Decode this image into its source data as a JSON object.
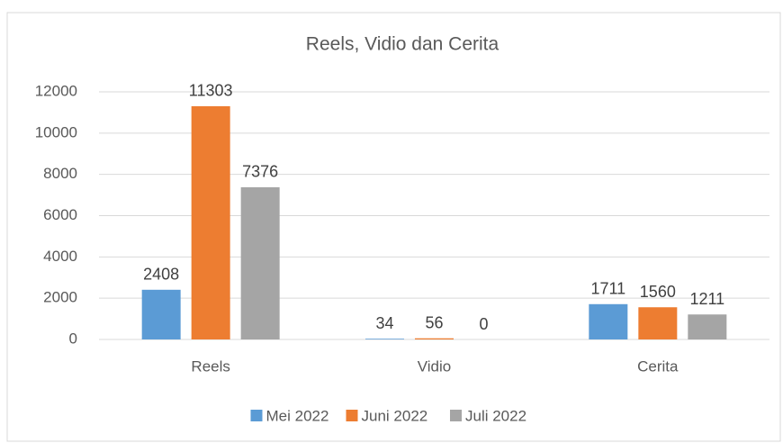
{
  "chart_data": {
    "type": "bar",
    "title": "Reels, Vidio dan Cerita",
    "categories": [
      "Reels",
      "Vidio",
      "Cerita"
    ],
    "series": [
      {
        "name": "Mei 2022",
        "color": "#5b9bd5",
        "values": [
          2408,
          34,
          1711
        ]
      },
      {
        "name": "Juni 2022",
        "color": "#ed7d31",
        "values": [
          11303,
          56,
          1560
        ]
      },
      {
        "name": "Juli 2022",
        "color": "#a5a5a5",
        "values": [
          7376,
          0,
          1211
        ]
      }
    ],
    "ylim": [
      0,
      12000
    ],
    "yticks": [
      0,
      2000,
      4000,
      6000,
      8000,
      10000,
      12000
    ],
    "grid": true,
    "legend": "bottom"
  }
}
